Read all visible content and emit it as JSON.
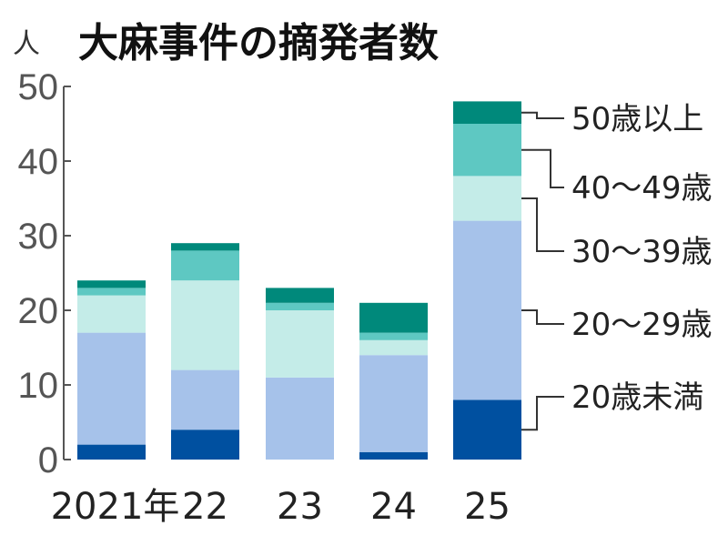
{
  "chart_data": {
    "type": "bar",
    "stacked": true,
    "title": "大麻事件の摘発者数",
    "ylabel": "人",
    "ylim": [
      0,
      50
    ],
    "yticks": [
      0,
      10,
      20,
      30,
      40,
      50
    ],
    "categories": [
      "2021年",
      "22",
      "23",
      "24",
      "25"
    ],
    "series": [
      {
        "name": "20歳未満",
        "color": "#0050a0",
        "values": [
          2,
          4,
          0,
          1,
          8
        ]
      },
      {
        "name": "20〜29歳",
        "color": "#a6c2ea",
        "values": [
          15,
          8,
          11,
          13,
          24
        ]
      },
      {
        "name": "30〜39歳",
        "color": "#c4ece8",
        "values": [
          5,
          12,
          9,
          2,
          6
        ]
      },
      {
        "name": "40〜49歳",
        "color": "#5ec8c2",
        "values": [
          1,
          4,
          1,
          1,
          7
        ]
      },
      {
        "name": "50歳以上",
        "color": "#00897b",
        "values": [
          1,
          1,
          2,
          4,
          3
        ]
      }
    ],
    "grid": false,
    "legend": "right, labels leading to last bar"
  }
}
